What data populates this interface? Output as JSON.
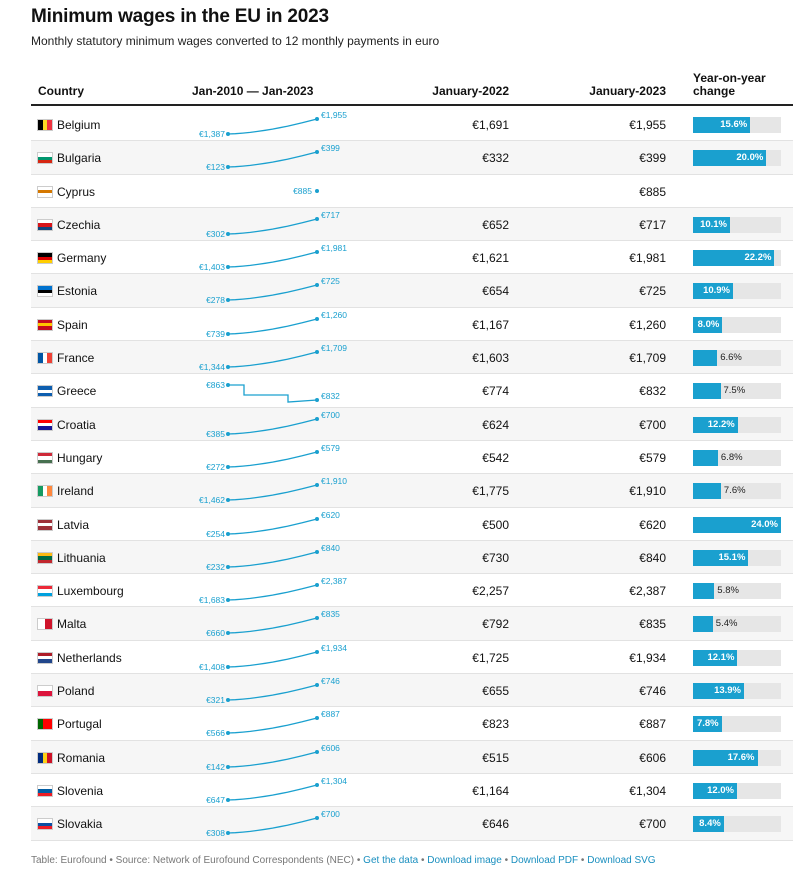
{
  "title": "Minimum wages in the EU in 2023",
  "subtitle": "Monthly statutory minimum wages converted to 12 monthly payments in euro",
  "colors": {
    "accent": "#1aa0cf",
    "track": "#e6e6e6"
  },
  "columns": {
    "country": "Country",
    "trend": "Jan-2010 — Jan-2023",
    "jan2022": "January-2022",
    "jan2023": "January-2023",
    "yoy": "Year-on-year change"
  },
  "chart_data": {
    "type": "table",
    "title": "Minimum wages in the EU in 2023",
    "series_names": [
      "Jan-2010 — Jan-2023",
      "January-2022",
      "January-2023",
      "Year-on-year change"
    ],
    "rows": [
      {
        "country": "Belgium",
        "flag": [
          "#000000",
          "#fdda24",
          "#ef3340"
        ],
        "flag_dir": "v",
        "start": "€1,387",
        "start_value": 1387,
        "end": "€1,955",
        "end_value": 1955,
        "jan2022": "€1,691",
        "jan2023": "€1,955",
        "yoy": 15.6,
        "yoy_label": "15.6%"
      },
      {
        "country": "Bulgaria",
        "flag": [
          "#ffffff",
          "#00966e",
          "#d62612"
        ],
        "flag_dir": "h",
        "start": "€123",
        "start_value": 123,
        "end": "€399",
        "end_value": 399,
        "jan2022": "€332",
        "jan2023": "€399",
        "yoy": 20.0,
        "yoy_label": "20.0%"
      },
      {
        "country": "Cyprus",
        "flag": [
          "#ffffff",
          "#d57800",
          "#ffffff"
        ],
        "flag_dir": "h",
        "start": "€885",
        "start_value": 885,
        "end": "",
        "end_value": 885,
        "jan2022": "",
        "jan2023": "€885",
        "yoy": null,
        "yoy_label": ""
      },
      {
        "country": "Czechia",
        "flag": [
          "#ffffff",
          "#d7141a",
          "#11457e"
        ],
        "flag_dir": "h",
        "start": "€302",
        "start_value": 302,
        "end": "€717",
        "end_value": 717,
        "jan2022": "€652",
        "jan2023": "€717",
        "yoy": 10.1,
        "yoy_label": "10.1%"
      },
      {
        "country": "Germany",
        "flag": [
          "#000000",
          "#dd0000",
          "#ffce00"
        ],
        "flag_dir": "h",
        "start": "€1,403",
        "start_value": 1403,
        "end": "€1,981",
        "end_value": 1981,
        "jan2022": "€1,621",
        "jan2023": "€1,981",
        "yoy": 22.2,
        "yoy_label": "22.2%"
      },
      {
        "country": "Estonia",
        "flag": [
          "#0072ce",
          "#000000",
          "#ffffff"
        ],
        "flag_dir": "h",
        "start": "€278",
        "start_value": 278,
        "end": "€725",
        "end_value": 725,
        "jan2022": "€654",
        "jan2023": "€725",
        "yoy": 10.9,
        "yoy_label": "10.9%"
      },
      {
        "country": "Spain",
        "flag": [
          "#c60b1e",
          "#ffc400",
          "#c60b1e"
        ],
        "flag_dir": "h",
        "start": "€739",
        "start_value": 739,
        "end": "€1,260",
        "end_value": 1260,
        "jan2022": "€1,167",
        "jan2023": "€1,260",
        "yoy": 8.0,
        "yoy_label": "8.0%"
      },
      {
        "country": "France",
        "flag": [
          "#0055a4",
          "#ffffff",
          "#ef4135"
        ],
        "flag_dir": "v",
        "start": "€1,344",
        "start_value": 1344,
        "end": "€1,709",
        "end_value": 1709,
        "jan2022": "€1,603",
        "jan2023": "€1,709",
        "yoy": 6.6,
        "yoy_label": "6.6%"
      },
      {
        "country": "Greece",
        "flag": [
          "#0d5eaf",
          "#ffffff",
          "#0d5eaf"
        ],
        "flag_dir": "h",
        "start": "€863",
        "start_value": 863,
        "end": "€832",
        "end_value": 832,
        "jan2022": "€774",
        "jan2023": "€832",
        "yoy": 7.5,
        "yoy_label": "7.5%"
      },
      {
        "country": "Croatia",
        "flag": [
          "#ff0000",
          "#ffffff",
          "#171796"
        ],
        "flag_dir": "h",
        "start": "€385",
        "start_value": 385,
        "end": "€700",
        "end_value": 700,
        "jan2022": "€624",
        "jan2023": "€700",
        "yoy": 12.2,
        "yoy_label": "12.2%"
      },
      {
        "country": "Hungary",
        "flag": [
          "#ce2939",
          "#ffffff",
          "#477050"
        ],
        "flag_dir": "h",
        "start": "€272",
        "start_value": 272,
        "end": "€579",
        "end_value": 579,
        "jan2022": "€542",
        "jan2023": "€579",
        "yoy": 6.8,
        "yoy_label": "6.8%"
      },
      {
        "country": "Ireland",
        "flag": [
          "#169b62",
          "#ffffff",
          "#ff883e"
        ],
        "flag_dir": "v",
        "start": "€1,462",
        "start_value": 1462,
        "end": "€1,910",
        "end_value": 1910,
        "jan2022": "€1,775",
        "jan2023": "€1,910",
        "yoy": 7.6,
        "yoy_label": "7.6%"
      },
      {
        "country": "Latvia",
        "flag": [
          "#9e3039",
          "#ffffff",
          "#9e3039"
        ],
        "flag_dir": "h",
        "start": "€254",
        "start_value": 254,
        "end": "€620",
        "end_value": 620,
        "jan2022": "€500",
        "jan2023": "€620",
        "yoy": 24.0,
        "yoy_label": "24.0%"
      },
      {
        "country": "Lithuania",
        "flag": [
          "#fdb913",
          "#006a44",
          "#c1272d"
        ],
        "flag_dir": "h",
        "start": "€232",
        "start_value": 232,
        "end": "€840",
        "end_value": 840,
        "jan2022": "€730",
        "jan2023": "€840",
        "yoy": 15.1,
        "yoy_label": "15.1%"
      },
      {
        "country": "Luxembourg",
        "flag": [
          "#ed2939",
          "#ffffff",
          "#00a1de"
        ],
        "flag_dir": "h",
        "start": "€1,683",
        "start_value": 1683,
        "end": "€2,387",
        "end_value": 2387,
        "jan2022": "€2,257",
        "jan2023": "€2,387",
        "yoy": 5.8,
        "yoy_label": "5.8%"
      },
      {
        "country": "Malta",
        "flag": [
          "#ffffff",
          "#cf142b"
        ],
        "flag_dir": "v",
        "start": "€660",
        "start_value": 660,
        "end": "€835",
        "end_value": 835,
        "jan2022": "€792",
        "jan2023": "€835",
        "yoy": 5.4,
        "yoy_label": "5.4%"
      },
      {
        "country": "Netherlands",
        "flag": [
          "#ae1c28",
          "#ffffff",
          "#21468b"
        ],
        "flag_dir": "h",
        "start": "€1,408",
        "start_value": 1408,
        "end": "€1,934",
        "end_value": 1934,
        "jan2022": "€1,725",
        "jan2023": "€1,934",
        "yoy": 12.1,
        "yoy_label": "12.1%"
      },
      {
        "country": "Poland",
        "flag": [
          "#ffffff",
          "#dc143c"
        ],
        "flag_dir": "h",
        "start": "€321",
        "start_value": 321,
        "end": "€746",
        "end_value": 746,
        "jan2022": "€655",
        "jan2023": "€746",
        "yoy": 13.9,
        "yoy_label": "13.9%"
      },
      {
        "country": "Portugal",
        "flag": [
          "#006600",
          "#ff0000",
          "#ff0000"
        ],
        "flag_dir": "v",
        "start": "€566",
        "start_value": 566,
        "end": "€887",
        "end_value": 887,
        "jan2022": "€823",
        "jan2023": "€887",
        "yoy": 7.8,
        "yoy_label": "7.8%"
      },
      {
        "country": "Romania",
        "flag": [
          "#002b7f",
          "#fcd116",
          "#ce1126"
        ],
        "flag_dir": "v",
        "start": "€142",
        "start_value": 142,
        "end": "€606",
        "end_value": 606,
        "jan2022": "€515",
        "jan2023": "€606",
        "yoy": 17.6,
        "yoy_label": "17.6%"
      },
      {
        "country": "Slovenia",
        "flag": [
          "#ffffff",
          "#005da4",
          "#ed1c24"
        ],
        "flag_dir": "h",
        "start": "€647",
        "start_value": 647,
        "end": "€1,304",
        "end_value": 1304,
        "jan2022": "€1,164",
        "jan2023": "€1,304",
        "yoy": 12.0,
        "yoy_label": "12.0%"
      },
      {
        "country": "Slovakia",
        "flag": [
          "#ffffff",
          "#0b4ea2",
          "#ee1c25"
        ],
        "flag_dir": "h",
        "start": "€308",
        "start_value": 308,
        "end": "€700",
        "end_value": 700,
        "jan2022": "€646",
        "jan2023": "€700",
        "yoy": 8.4,
        "yoy_label": "8.4%"
      }
    ]
  },
  "footer": {
    "source": "Table: Eurofound • Source: Network of Eurofound Correspondents (NEC) •",
    "links": [
      "Get the data",
      "Download image",
      "Download PDF",
      "Download SVG"
    ],
    "separator": "•"
  }
}
